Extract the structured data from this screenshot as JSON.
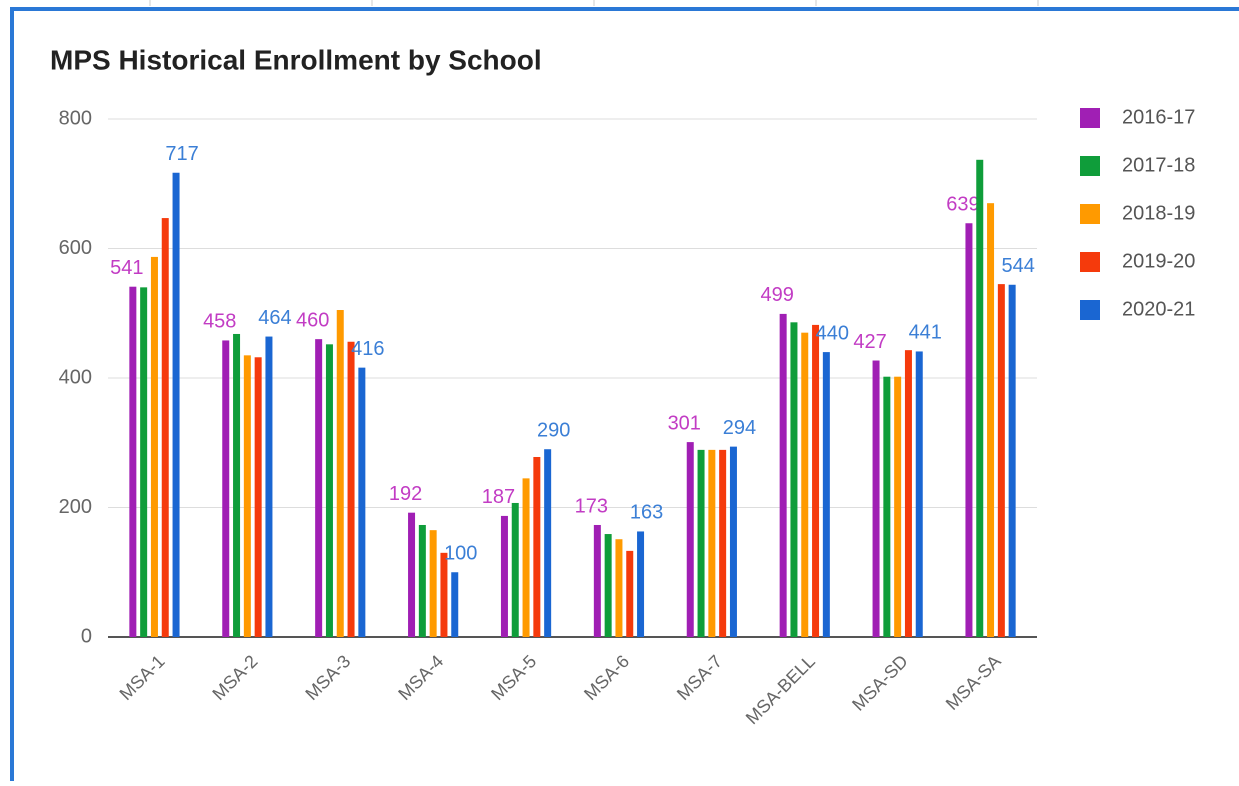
{
  "chart_data": {
    "type": "bar",
    "title": "MPS Historical Enrollment by School",
    "categories": [
      "MSA-1",
      "MSA-2",
      "MSA-3",
      "MSA-4",
      "MSA-5",
      "MSA-6",
      "MSA-7",
      "MSA-BELL",
      "MSA-SD",
      "MSA-SA"
    ],
    "series": [
      {
        "name": "2016-17",
        "color": "#a01fb4",
        "label_color": "#c23cc4",
        "show_labels": true,
        "values": [
          541,
          458,
          460,
          192,
          187,
          173,
          301,
          499,
          427,
          639
        ]
      },
      {
        "name": "2017-18",
        "color": "#0f9d3a",
        "show_labels": false,
        "values": [
          540,
          468,
          452,
          173,
          207,
          159,
          289,
          486,
          402,
          737
        ]
      },
      {
        "name": "2018-19",
        "color": "#ff9a00",
        "show_labels": false,
        "values": [
          587,
          435,
          505,
          165,
          245,
          151,
          289,
          470,
          402,
          670
        ]
      },
      {
        "name": "2019-20",
        "color": "#f53a0c",
        "show_labels": false,
        "values": [
          647,
          432,
          456,
          130,
          278,
          133,
          289,
          482,
          443,
          545
        ]
      },
      {
        "name": "2020-21",
        "color": "#1a66d2",
        "label_color": "#3b7fd6",
        "show_labels": true,
        "values": [
          717,
          464,
          416,
          100,
          290,
          163,
          294,
          440,
          441,
          544
        ]
      }
    ],
    "ylim": [
      0,
      800
    ],
    "yticks": [
      0,
      200,
      400,
      600,
      800
    ],
    "grid": true,
    "legend": "right"
  }
}
